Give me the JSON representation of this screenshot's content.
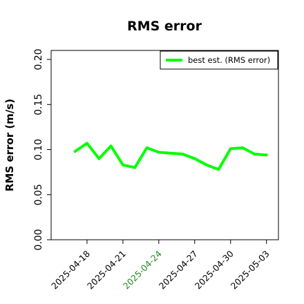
{
  "chart_data": {
    "type": "line",
    "title": "RMS error",
    "xlabel": "",
    "ylabel": "RMS error (m/s)",
    "ylim": [
      0,
      0.21
    ],
    "yticks": [
      "0.00",
      "0.05",
      "0.10",
      "0.15",
      "0.20"
    ],
    "x_range": [
      "2025-04-15",
      "2025-05-04"
    ],
    "xtick_labels": [
      "2025-04-18",
      "2025-04-21",
      "2025-04-24",
      "2025-04-27",
      "2025-04-30",
      "2025-05-03"
    ],
    "highlight_tick": "2025-04-24",
    "grid": false,
    "legend_position": "top-right",
    "series": [
      {
        "name": "best est. (RMS error)",
        "color": "#00ff00",
        "x": [
          "2025-04-17",
          "2025-04-18",
          "2025-04-19",
          "2025-04-20",
          "2025-04-21",
          "2025-04-22",
          "2025-04-23",
          "2025-04-24",
          "2025-04-25",
          "2025-04-26",
          "2025-04-27",
          "2025-04-28",
          "2025-04-29",
          "2025-04-30",
          "2025-05-01",
          "2025-05-02",
          "2025-05-03"
        ],
        "values": [
          0.098,
          0.107,
          0.09,
          0.104,
          0.083,
          0.08,
          0.102,
          0.097,
          0.096,
          0.095,
          0.09,
          0.083,
          0.078,
          0.101,
          0.102,
          0.095,
          0.094
        ]
      }
    ],
    "colors": {
      "axis": "#000000",
      "tick_label": "#000000",
      "highlight_tick_label": "#228b22"
    }
  }
}
